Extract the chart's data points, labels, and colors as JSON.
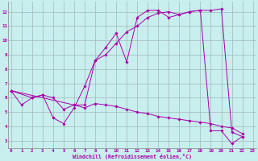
{
  "background_color": "#c8eeee",
  "grid_color": "#a0b8b8",
  "line_color": "#aa00aa",
  "xlabel": "Windchill (Refroidissement éolien,°C)",
  "xlim_min": -0.3,
  "xlim_max": 23.3,
  "ylim_min": 2.5,
  "ylim_max": 12.7,
  "xticks": [
    0,
    1,
    2,
    3,
    4,
    5,
    6,
    7,
    8,
    9,
    10,
    11,
    12,
    13,
    14,
    15,
    16,
    17,
    18,
    19,
    20,
    21,
    22,
    23
  ],
  "yticks": [
    3,
    4,
    5,
    6,
    7,
    8,
    9,
    10,
    11,
    12
  ],
  "series": [
    {
      "x": [
        0,
        1,
        2,
        3,
        4,
        5,
        6,
        7,
        8,
        9,
        10,
        11,
        12,
        13,
        14,
        15,
        16,
        17,
        18,
        19,
        20,
        21,
        22
      ],
      "y": [
        6.5,
        5.5,
        6.0,
        6.2,
        4.6,
        4.2,
        5.3,
        6.8,
        8.6,
        9.5,
        10.5,
        8.5,
        11.6,
        12.1,
        12.1,
        11.6,
        11.8,
        12.0,
        12.1,
        3.7,
        3.7,
        2.8,
        3.3
      ]
    },
    {
      "x": [
        0,
        2,
        3,
        4,
        5,
        6,
        7,
        8,
        9,
        10,
        11,
        12,
        13,
        14,
        15,
        16,
        17,
        18,
        19,
        20,
        21,
        22
      ],
      "y": [
        6.5,
        6.0,
        6.2,
        6.0,
        5.2,
        5.5,
        5.3,
        5.6,
        5.5,
        5.4,
        5.2,
        5.0,
        4.9,
        4.7,
        4.6,
        4.5,
        4.4,
        4.3,
        4.2,
        4.0,
        3.9,
        3.5
      ]
    },
    {
      "x": [
        0,
        6,
        7,
        8,
        9,
        10,
        11,
        12,
        13,
        14,
        15,
        16,
        17,
        18,
        19,
        20,
        21,
        22
      ],
      "y": [
        6.5,
        5.5,
        5.5,
        8.6,
        9.0,
        9.8,
        10.6,
        11.0,
        11.6,
        11.9,
        12.0,
        11.8,
        12.0,
        12.1,
        12.1,
        12.2,
        3.6,
        3.3
      ]
    }
  ]
}
